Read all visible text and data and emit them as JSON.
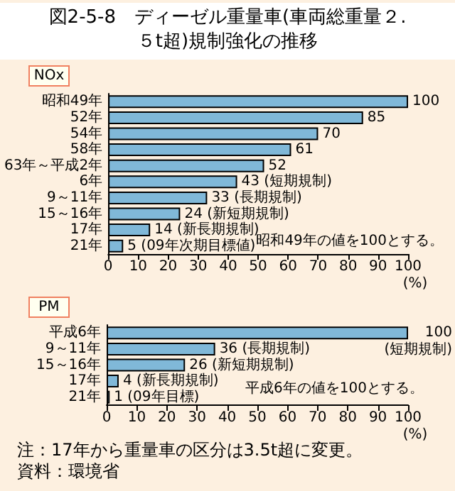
{
  "chart_data": [
    {
      "type": "bar",
      "orientation": "horizontal",
      "title": "図2-5-8　ディーゼル重量車(車両総重量２.５t超)規制強化の推移",
      "subtitle": "NOx",
      "xlabel": "(%)",
      "categories": [
        "昭和49年",
        "52年",
        "54年",
        "58年",
        "63年～平成2年",
        "6年",
        "9～11年",
        "15～16年",
        "17年",
        "21年"
      ],
      "values": [
        100,
        85,
        70,
        61,
        52,
        43,
        33,
        24,
        14,
        5
      ],
      "value_labels": [
        "100",
        "85",
        "70",
        "61",
        "52",
        "43 (短期規制)",
        "33 (長期規制)",
        "24 (新短期規制)",
        "14 (新長期規制)",
        "5 (09年次期目標値)"
      ],
      "color": "#80b8d8",
      "xlim": [
        0,
        100
      ],
      "xticks": [
        0,
        10,
        20,
        30,
        40,
        50,
        60,
        70,
        80,
        90,
        100
      ],
      "annotations": [
        "昭和49年の値を100とする。"
      ]
    },
    {
      "type": "bar",
      "orientation": "horizontal",
      "subtitle": "PM",
      "xlabel": "(%)",
      "categories": [
        "平成6年",
        "9～11年",
        "15～16年",
        "17年",
        "21年"
      ],
      "values": [
        100,
        36,
        26,
        4,
        1
      ],
      "value_labels": [
        "100 (短期規制)",
        "36 (長期規制)",
        "26 (新短期規制)",
        "4 (新長期規制)",
        "1 (09年目標)"
      ],
      "color": "#80b8d8",
      "xlim": [
        0,
        100
      ],
      "xticks": [
        0,
        10,
        20,
        30,
        40,
        50,
        60,
        70,
        80,
        90,
        100
      ],
      "annotations": [
        "平成6年の値を100とする。",
        "注：17年から重量車の区分は3.5t超に変更。",
        "資料：環境省"
      ]
    }
  ]
}
